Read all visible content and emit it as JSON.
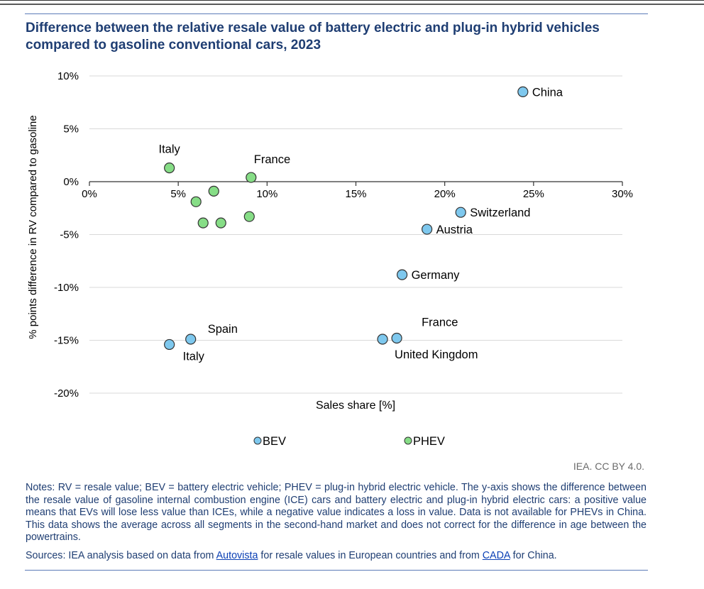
{
  "title": "Difference between the relative resale value of battery electric and plug-in hybrid vehicles compared to gasoline conventional cars, 2023",
  "credit": "IEA. CC BY 4.0.",
  "notes": "Notes: RV = resale value; BEV = battery electric vehicle; PHEV = plug-in hybrid electric vehicle. The y-axis shows the difference between the resale value of gasoline internal combustion engine (ICE) cars and battery electric and plug-in hybrid electric cars: a positive value means that EVs will lose less value than ICEs, while a negative value indicates a loss in value. Data is not available for PHEVs in China. This data shows the average across all segments in the second-hand market and does not correct for the difference in age between the powertrains.",
  "sources": {
    "prefix": "Sources: IEA analysis based on data from ",
    "link1": "Autovista",
    "middle": " for resale values in European countries and from ",
    "link2": "CADA",
    "suffix": " for China."
  },
  "chart_data": {
    "type": "scatter",
    "xlabel": "Sales share [%]",
    "ylabel": "% points difference in RV compared to gasoline",
    "xlim": [
      0,
      30
    ],
    "ylim": [
      -20,
      10
    ],
    "x_ticks": [
      "0%",
      "5%",
      "10%",
      "15%",
      "20%",
      "25%",
      "30%"
    ],
    "y_ticks": [
      "10%",
      "5%",
      "0%",
      "-5%",
      "-10%",
      "-15%",
      "-20%"
    ],
    "grid": true,
    "legend_position": "bottom-center",
    "series": [
      {
        "name": "BEV",
        "color": "#7ec8ee",
        "points": [
          {
            "x": 24.4,
            "y": 8.5,
            "label": "China",
            "label_pos": "right"
          },
          {
            "x": 20.9,
            "y": -2.9,
            "label": "Switzerland",
            "label_pos": "right"
          },
          {
            "x": 19.0,
            "y": -4.5,
            "label": "Austria",
            "label_pos": "right"
          },
          {
            "x": 17.6,
            "y": -8.8,
            "label": "Germany",
            "label_pos": "right"
          },
          {
            "x": 17.3,
            "y": -14.8,
            "label": "France",
            "label_pos": "above-right"
          },
          {
            "x": 16.5,
            "y": -14.9,
            "label": "United Kingdom",
            "label_pos": "below-right"
          },
          {
            "x": 5.7,
            "y": -14.9,
            "label": "Spain",
            "label_pos": "above-right"
          },
          {
            "x": 4.5,
            "y": -15.4,
            "label": "Italy",
            "label_pos": "below-right"
          }
        ]
      },
      {
        "name": "PHEV",
        "color": "#86dd86",
        "points": [
          {
            "x": 4.5,
            "y": 1.3,
            "label": "Italy",
            "label_pos": "above"
          },
          {
            "x": 9.1,
            "y": 0.4,
            "label": "France",
            "label_pos": "above-right"
          },
          {
            "x": 7.0,
            "y": -0.9,
            "label": "",
            "label_pos": ""
          },
          {
            "x": 6.0,
            "y": -1.9,
            "label": "",
            "label_pos": ""
          },
          {
            "x": 6.4,
            "y": -3.9,
            "label": "",
            "label_pos": ""
          },
          {
            "x": 7.4,
            "y": -3.9,
            "label": "",
            "label_pos": ""
          },
          {
            "x": 9.0,
            "y": -3.3,
            "label": "",
            "label_pos": ""
          }
        ]
      }
    ]
  }
}
